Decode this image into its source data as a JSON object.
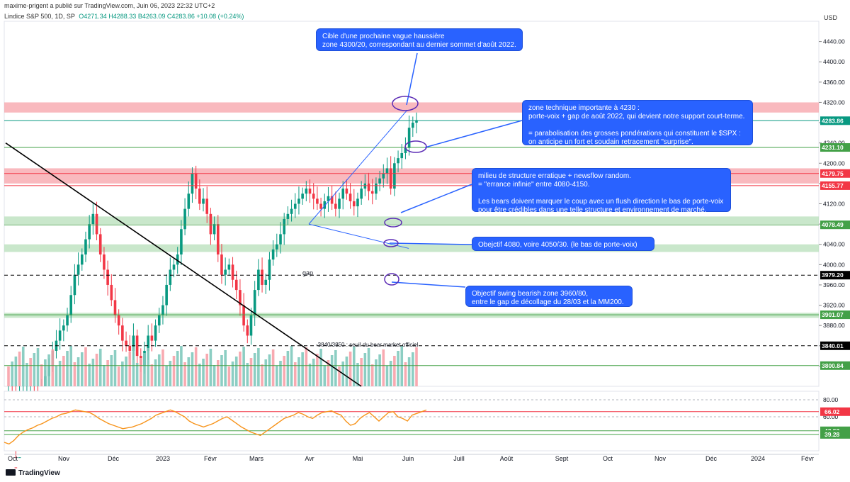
{
  "header": {
    "publisher": "maxime-prigent a publié sur TradingView.com, Juin 06, 2023 22:32 UTC+2",
    "symbol": "Lindice S&P 500, 1D, SP",
    "ohlc": "O4271.34 H4288.33 B4263.09 C4283.86 +10.08 (+0.24%)",
    "currency": "USD"
  },
  "brand": "TradingView",
  "colors": {
    "up": "#089981",
    "down": "#f23645",
    "note": "#2962ff",
    "rsi": "#f7931a"
  },
  "annotations": {
    "target_top": "Cible d'une prochaine vague haussière\nzone 4300/20, correspondant au dernier sommet d'août 2022.",
    "zone_4230": "zone technique importante à 4230 :\nporte-voix + gap de août 2022, qui devient notre support court-terme.\n\n= parabolisation des grosses pondérations qui constituent le $SPX :\non anticipe un fort et soudain retracement \"surprise\".",
    "middle": "milieu de structure erratique + newsflow random.\n= \"errance infinie\" entre 4080-4150.\n\nLes bears doivent marquer le coup avec un flush direction le bas de porte-voix\npour être crédibles dans une telle structure et environnement de marché.",
    "obj_4080": "Obejctif 4080, voire 4050/30. (le bas de porte-voix)",
    "obj_swing": "Objectif swing bearish zone 3960/80,\nentre le gap de décollage du 28/03 et la MM200.",
    "gap_label": "gap",
    "bear_label": "-3840/3850 : seuil du bear market officiel"
  },
  "chart_data": [
    {
      "type": "candlestick",
      "title": "Lindice S&P 500, 1D, SP",
      "ylim": [
        3760,
        4480
      ],
      "yticks": [
        4440,
        4400,
        4360,
        4320,
        4280,
        4240,
        4200,
        4160,
        4120,
        4080,
        4040,
        4000,
        3960,
        3920,
        3880,
        3840,
        3800
      ],
      "ytick_labels": [
        "4440.00",
        "4400.00",
        "4360.00",
        "4320.00",
        "4280.00",
        "4240.00",
        "4200.00",
        "4160.00",
        "4120.00",
        "4080.00",
        "4040.00",
        "4000.00",
        "3960.00",
        "3920.00",
        "3880.00",
        "3840.00",
        "3800.00"
      ],
      "x_labels": [
        "Oct",
        "Nov",
        "Déc",
        "2023",
        "Févr",
        "Mars",
        "Avr",
        "Mai",
        "Juin",
        "Juill",
        "Août",
        "Sept",
        "Oct",
        "Nov",
        "Déc",
        "2024",
        "Févr"
      ],
      "price_levels": [
        {
          "value": 4283.86,
          "label": "4283.86",
          "color": "#089981"
        },
        {
          "value": 4231.1,
          "label": "4231.10",
          "color": "#43a047"
        },
        {
          "value": 4179.75,
          "label": "4179.75",
          "color": "#f23645"
        },
        {
          "value": 4155.77,
          "label": "4155.77",
          "color": "#f23645"
        },
        {
          "value": 4078.49,
          "label": "4078.49",
          "color": "#43a047"
        },
        {
          "value": 3979.2,
          "label": "3979.20",
          "color": "#000000"
        },
        {
          "value": 3901.07,
          "label": "3901.07",
          "color": "#43a047"
        },
        {
          "value": 3840.01,
          "label": "3840.01",
          "color": "#000000"
        },
        {
          "value": 3800.84,
          "label": "3800.84",
          "color": "#43a047"
        }
      ],
      "zones": [
        {
          "from": 4300,
          "to": 4320,
          "color": "#f7a1a8"
        },
        {
          "from": 4160,
          "to": 4190,
          "color": "#f7a1a8"
        },
        {
          "from": 4080,
          "to": 4095,
          "color": "#b7dfb9"
        },
        {
          "from": 4025,
          "to": 4040,
          "color": "#b7dfb9"
        },
        {
          "from": 3895,
          "to": 3905,
          "color": "#b7dfb9"
        }
      ],
      "close": [
        3640,
        3600,
        3590,
        3620,
        3660,
        3700,
        3720,
        3690,
        3680,
        3750,
        3780,
        3800,
        3830,
        3850,
        3870,
        3880,
        3900,
        3940,
        3980,
        4000,
        4020,
        4050,
        4080,
        4100,
        4060,
        4020,
        3990,
        3960,
        3930,
        3900,
        3880,
        3850,
        3840,
        3830,
        3860,
        3820,
        3800,
        3830,
        3860,
        3850,
        3880,
        3900,
        3920,
        3960,
        3990,
        4000,
        4020,
        4070,
        4110,
        4140,
        4180,
        4150,
        4120,
        4130,
        4100,
        4060,
        4080,
        4020,
        3980,
        3990,
        4000,
        3970,
        3950,
        3920,
        3880,
        3860,
        3900,
        3950,
        3990,
        3960,
        3970,
        4010,
        4030,
        4040,
        4060,
        4090,
        4100,
        4110,
        4120,
        4130,
        4140,
        4150,
        4140,
        4130,
        4120,
        4110,
        4125,
        4135,
        4120,
        4110,
        4130,
        4150,
        4140,
        4125,
        4115,
        4130,
        4150,
        4160,
        4145,
        4140,
        4160,
        4170,
        4180,
        4190,
        4150,
        4200,
        4210,
        4220,
        4230,
        4270,
        4280,
        4285
      ]
    },
    {
      "type": "line",
      "title": "RSI",
      "ylim": [
        20,
        90
      ],
      "yticks": [
        80,
        60
      ],
      "ytick_labels": [
        "80.00",
        "60.00"
      ],
      "levels": [
        {
          "value": 66.02,
          "label": "66.02",
          "color": "#f23645"
        },
        {
          "value": 43.53,
          "label": "43.53",
          "color": "#43a047"
        },
        {
          "value": 39.28,
          "label": "39.28",
          "color": "#43a047"
        }
      ],
      "values": [
        30,
        28,
        32,
        38,
        42,
        45,
        47,
        50,
        52,
        55,
        58,
        60,
        63,
        64,
        66,
        68,
        67,
        66,
        65,
        62,
        58,
        55,
        52,
        50,
        48,
        46,
        47,
        48,
        50,
        52,
        55,
        58,
        62,
        64,
        66,
        68,
        66,
        63,
        60,
        55,
        52,
        50,
        48,
        50,
        52,
        55,
        58,
        60,
        56,
        52,
        48,
        45,
        42,
        40,
        38,
        42,
        46,
        50,
        54,
        58,
        60,
        62,
        65,
        63,
        60,
        58,
        62,
        65,
        66,
        67,
        64,
        62,
        55,
        50,
        52,
        58,
        62,
        65,
        60,
        55,
        60,
        65,
        66,
        60,
        58,
        55,
        62,
        64,
        66,
        68
      ]
    }
  ]
}
